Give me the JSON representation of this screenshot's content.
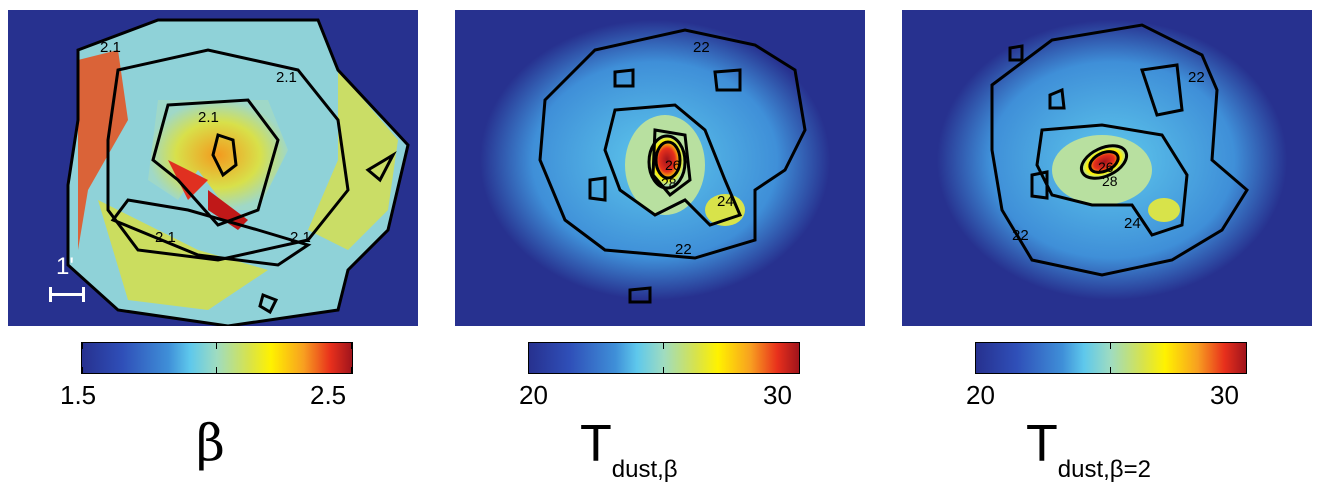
{
  "panels": [
    {
      "contour_labels": [
        "2.1",
        "2.1",
        "2.1",
        "2.1",
        "2.1"
      ],
      "scalebar_label": "1'",
      "colorbar": {
        "min_label": "1.5",
        "max_label": "2.5"
      },
      "variable_label": "β"
    },
    {
      "contour_labels": [
        "22",
        "22",
        "24",
        "26",
        "28"
      ],
      "colorbar": {
        "min_label": "20",
        "max_label": "30"
      },
      "variable_label": {
        "main": "T",
        "sub": "dust,β"
      }
    },
    {
      "contour_labels": [
        "22",
        "22",
        "24",
        "26",
        "28"
      ],
      "colorbar": {
        "min_label": "20",
        "max_label": "30"
      },
      "variable_label": {
        "main": "T",
        "sub": "dust,β=2"
      }
    }
  ],
  "colors": {
    "background": "#27318f",
    "contour": "#000000",
    "scalebar": "#ffffff"
  }
}
